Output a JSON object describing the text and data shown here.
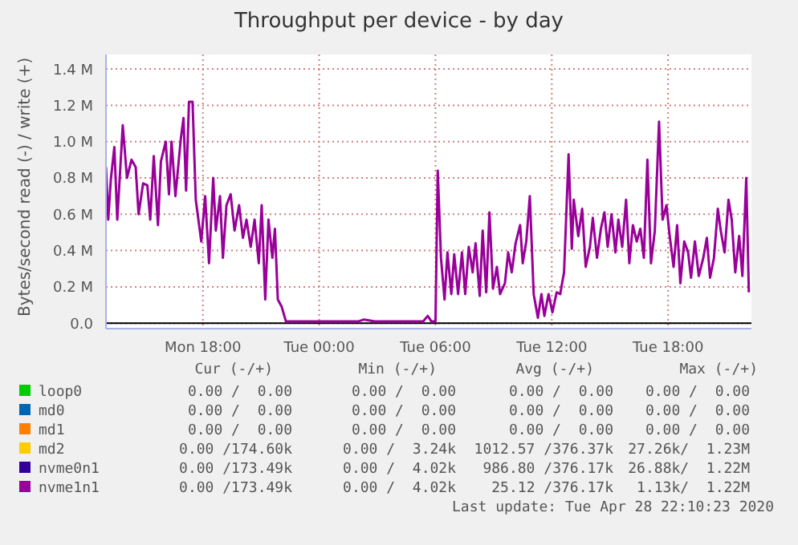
{
  "chart_data": {
    "type": "line",
    "title": "Throughput per device - by day",
    "ylabel": "Bytes/second read (-) / write (+)",
    "x": [
      "2020-04-27T13:00",
      "2020-04-27T13:07",
      "2020-04-27T13:15",
      "2020-04-27T13:26",
      "2020-04-27T13:35",
      "2020-04-27T13:52",
      "2020-04-27T14:05",
      "2020-04-27T14:19",
      "2020-04-27T14:32",
      "2020-04-27T14:41",
      "2020-04-27T14:55",
      "2020-04-27T15:08",
      "2020-04-27T15:17",
      "2020-04-27T15:28",
      "2020-04-27T15:41",
      "2020-04-27T15:50",
      "2020-04-27T16:05",
      "2020-04-27T16:15",
      "2020-04-27T16:23",
      "2020-04-27T16:35",
      "2020-04-27T16:52",
      "2020-04-27T17:00",
      "2020-04-27T17:08",
      "2020-04-27T17:17",
      "2020-04-27T17:28",
      "2020-04-27T17:38",
      "2020-04-27T17:55",
      "2020-04-27T18:07",
      "2020-04-27T18:19",
      "2020-04-27T18:32",
      "2020-04-27T18:40",
      "2020-04-27T18:53",
      "2020-04-27T19:02",
      "2020-04-27T19:13",
      "2020-04-27T19:26",
      "2020-04-27T19:38",
      "2020-04-27T19:52",
      "2020-04-27T20:04",
      "2020-04-27T20:15",
      "2020-04-27T20:28",
      "2020-04-27T20:40",
      "2020-04-27T20:53",
      "2020-04-27T21:02",
      "2020-04-27T21:13",
      "2020-04-27T21:23",
      "2020-04-27T21:35",
      "2020-04-27T21:43",
      "2020-04-27T21:52",
      "2020-04-27T22:04",
      "2020-04-27T22:17",
      "2020-04-28T00:05",
      "2020-04-28T02:02",
      "2020-04-28T02:19",
      "2020-04-28T02:52",
      "2020-04-28T04:15",
      "2020-04-28T05:22",
      "2020-04-28T05:36",
      "2020-04-28T05:47",
      "2020-04-28T06:00",
      "2020-04-28T06:07",
      "2020-04-28T06:17",
      "2020-04-28T06:28",
      "2020-04-28T06:37",
      "2020-04-28T06:49",
      "2020-04-28T06:58",
      "2020-04-28T07:10",
      "2020-04-28T07:22",
      "2020-04-28T07:32",
      "2020-04-28T07:43",
      "2020-04-28T07:55",
      "2020-04-28T08:04",
      "2020-04-28T08:17",
      "2020-04-28T08:26",
      "2020-04-28T08:37",
      "2020-04-28T08:47",
      "2020-04-28T08:58",
      "2020-04-28T09:10",
      "2020-04-28T09:20",
      "2020-04-28T09:35",
      "2020-04-28T09:45",
      "2020-04-28T09:56",
      "2020-04-28T10:08",
      "2020-04-28T10:22",
      "2020-04-28T10:30",
      "2020-04-28T10:41",
      "2020-04-28T10:52",
      "2020-04-28T11:04",
      "2020-04-28T11:17",
      "2020-04-28T11:28",
      "2020-04-28T11:37",
      "2020-04-28T11:50",
      "2020-04-28T12:02",
      "2020-04-28T12:15",
      "2020-04-28T12:26",
      "2020-04-28T12:38",
      "2020-04-28T12:52",
      "2020-04-28T13:02",
      "2020-04-28T13:08",
      "2020-04-28T13:22",
      "2020-04-28T13:34",
      "2020-04-28T13:45",
      "2020-04-28T13:58",
      "2020-04-28T14:07",
      "2020-04-28T14:20",
      "2020-04-28T14:32",
      "2020-04-28T14:43",
      "2020-04-28T14:53",
      "2020-04-28T15:05",
      "2020-04-28T15:17",
      "2020-04-28T15:26",
      "2020-04-28T15:38",
      "2020-04-28T15:50",
      "2020-04-28T16:00",
      "2020-04-28T16:11",
      "2020-04-28T16:23",
      "2020-04-28T16:34",
      "2020-04-28T16:45",
      "2020-04-28T16:56",
      "2020-04-28T17:07",
      "2020-04-28T17:19",
      "2020-04-28T17:32",
      "2020-04-28T17:43",
      "2020-04-28T17:55",
      "2020-04-28T18:05",
      "2020-04-28T18:17",
      "2020-04-28T18:28",
      "2020-04-28T18:38",
      "2020-04-28T18:50",
      "2020-04-28T19:02",
      "2020-04-28T19:11",
      "2020-04-28T19:23",
      "2020-04-28T19:35",
      "2020-04-28T19:49",
      "2020-04-28T20:00",
      "2020-04-28T20:10",
      "2020-04-28T20:22",
      "2020-04-28T20:34",
      "2020-04-28T20:43",
      "2020-04-28T20:55",
      "2020-04-28T21:07",
      "2020-04-28T21:17",
      "2020-04-28T21:28",
      "2020-04-28T21:40",
      "2020-04-28T21:50",
      "2020-04-28T22:02",
      "2020-04-28T22:10"
    ],
    "series": [
      {
        "name": "loop0",
        "color": "#00cc00",
        "values": [
          null,
          null,
          null,
          null,
          null,
          null,
          null,
          null,
          null,
          null,
          null,
          null,
          null,
          null,
          null,
          null,
          null,
          null,
          null,
          null,
          null,
          null,
          null,
          null,
          null,
          null,
          null,
          null,
          null,
          null,
          null,
          null,
          null,
          null,
          null,
          null,
          null,
          null,
          null,
          null,
          null,
          null,
          null,
          null,
          null,
          null,
          null,
          null,
          null,
          null,
          null,
          null,
          null,
          null,
          null,
          null,
          null,
          null,
          null,
          null,
          null,
          null,
          null,
          null,
          null,
          null,
          null,
          null,
          null,
          null,
          null,
          null,
          null,
          null,
          null,
          null,
          null,
          null,
          null,
          null,
          null,
          null,
          null,
          null,
          null,
          null,
          null,
          null,
          null,
          null,
          null,
          null,
          null,
          null,
          null,
          null,
          null,
          null,
          null,
          null,
          null,
          null,
          null,
          null,
          null,
          null,
          null,
          null,
          null,
          null,
          null,
          null,
          null,
          null,
          null,
          null,
          null,
          null,
          null,
          null,
          null,
          null,
          null,
          null,
          null,
          null,
          null,
          null,
          null,
          null,
          null,
          null,
          null,
          null,
          null,
          null,
          null,
          null,
          null,
          null,
          null,
          null,
          null,
          null,
          null,
          null
        ]
      },
      {
        "name": "md0",
        "color": "#0066b3",
        "values": [
          null,
          null,
          null,
          null,
          null,
          null,
          null,
          null,
          null,
          null,
          null,
          null,
          null,
          null,
          null,
          null,
          null,
          null,
          null,
          null,
          null,
          null,
          null,
          null,
          null,
          null,
          null,
          null,
          null,
          null,
          null,
          null,
          null,
          null,
          null,
          null,
          null,
          null,
          null,
          null,
          null,
          null,
          null,
          null,
          null,
          null,
          null,
          null,
          null,
          null,
          null,
          null,
          null,
          null,
          null,
          null,
          null,
          null,
          null,
          null,
          null,
          null,
          null,
          null,
          null,
          null,
          null,
          null,
          null,
          null,
          null,
          null,
          null,
          null,
          null,
          null,
          null,
          null,
          null,
          null,
          null,
          null,
          null,
          null,
          null,
          null,
          null,
          null,
          null,
          null,
          null,
          null,
          null,
          null,
          null,
          null,
          null,
          null,
          null,
          null,
          null,
          null,
          null,
          null,
          null,
          null,
          null,
          null,
          null,
          null,
          null,
          null,
          null,
          null,
          null,
          null,
          null,
          null,
          null,
          null,
          null,
          null,
          null,
          null,
          null,
          null,
          null,
          null,
          null,
          null,
          null,
          null,
          null,
          null,
          null,
          null,
          null,
          null,
          null,
          null,
          null,
          null,
          null,
          null,
          null,
          null
        ]
      },
      {
        "name": "md1",
        "color": "#ff8000",
        "values": [
          null,
          null,
          null,
          null,
          null,
          null,
          null,
          null,
          null,
          null,
          null,
          null,
          null,
          null,
          null,
          null,
          null,
          null,
          null,
          null,
          null,
          null,
          null,
          null,
          null,
          null,
          null,
          null,
          null,
          null,
          null,
          null,
          null,
          null,
          null,
          null,
          null,
          null,
          null,
          null,
          null,
          null,
          null,
          null,
          null,
          null,
          null,
          null,
          null,
          null,
          null,
          null,
          null,
          null,
          null,
          null,
          null,
          null,
          null,
          null,
          null,
          null,
          null,
          null,
          null,
          null,
          null,
          null,
          null,
          null,
          null,
          null,
          null,
          null,
          null,
          null,
          null,
          null,
          null,
          null,
          null,
          null,
          null,
          null,
          null,
          null,
          null,
          null,
          null,
          null,
          null,
          null,
          null,
          null,
          null,
          null,
          null,
          null,
          null,
          null,
          null,
          null,
          null,
          null,
          null,
          null,
          null,
          null,
          null,
          null,
          null,
          null,
          null,
          null,
          null,
          null,
          null,
          null,
          null,
          null,
          null,
          null,
          null,
          null,
          null,
          null,
          null,
          null,
          null,
          null,
          null,
          null,
          null,
          null,
          null,
          null,
          null,
          null,
          null,
          null,
          null,
          null,
          null,
          null,
          null,
          null
        ]
      },
      {
        "name": "md2",
        "color": "#ffcc00",
        "values": [
          null,
          null,
          null,
          null,
          null,
          null,
          null,
          null,
          null,
          null,
          null,
          null,
          null,
          null,
          null,
          null,
          null,
          null,
          null,
          null,
          null,
          null,
          null,
          null,
          null,
          null,
          null,
          null,
          null,
          null,
          null,
          null,
          null,
          null,
          null,
          null,
          null,
          null,
          null,
          null,
          null,
          null,
          null,
          null,
          null,
          null,
          null,
          null,
          null,
          null,
          null,
          null,
          null,
          null,
          null,
          null,
          null,
          null,
          null,
          null,
          null,
          null,
          null,
          null,
          null,
          null,
          null,
          null,
          null,
          null,
          null,
          null,
          null,
          null,
          null,
          null,
          null,
          null,
          null,
          null,
          null,
          null,
          null,
          null,
          null,
          null,
          null,
          null,
          null,
          null,
          null,
          null,
          null,
          null,
          null,
          null,
          null,
          null,
          null,
          null,
          null,
          null,
          null,
          null,
          null,
          null,
          null,
          null,
          null,
          null,
          null,
          null,
          null,
          null,
          null,
          null,
          null,
          null,
          null,
          null,
          null,
          null,
          null,
          null,
          null,
          null,
          null,
          null,
          null,
          null,
          null,
          null,
          null,
          null,
          null,
          null,
          null,
          null,
          null,
          null,
          null,
          null,
          null,
          null,
          null,
          null
        ]
      },
      {
        "name": "nvme0n1",
        "color": "#330099",
        "values": [
          null,
          null,
          null,
          null,
          null,
          null,
          null,
          null,
          null,
          null,
          null,
          null,
          null,
          null,
          null,
          null,
          null,
          null,
          null,
          null,
          null,
          null,
          null,
          null,
          null,
          null,
          null,
          null,
          null,
          null,
          null,
          null,
          null,
          null,
          null,
          null,
          null,
          null,
          null,
          null,
          null,
          null,
          null,
          null,
          null,
          null,
          null,
          null,
          null,
          null,
          null,
          null,
          null,
          null,
          null,
          null,
          null,
          null,
          null,
          null,
          null,
          null,
          null,
          null,
          null,
          null,
          null,
          null,
          null,
          null,
          null,
          null,
          null,
          null,
          null,
          null,
          null,
          null,
          null,
          null,
          null,
          null,
          null,
          null,
          null,
          null,
          null,
          null,
          null,
          null,
          null,
          null,
          null,
          null,
          null,
          null,
          null,
          null,
          null,
          null,
          null,
          null,
          null,
          null,
          null,
          null,
          null,
          null,
          null,
          null,
          null,
          null,
          null,
          null,
          null,
          null,
          null,
          null,
          null,
          null,
          null,
          null,
          null,
          null,
          null,
          null,
          null,
          null,
          null,
          null,
          null,
          null,
          null,
          null,
          null,
          null,
          null,
          null,
          null,
          null,
          null,
          null,
          null,
          null,
          null,
          null
        ]
      },
      {
        "name": "nvme1n1",
        "color": "#990099",
        "values": [
          0.86,
          0.57,
          0.79,
          0.97,
          0.57,
          1.09,
          0.8,
          0.9,
          0.86,
          0.6,
          0.77,
          0.76,
          0.57,
          0.92,
          0.54,
          0.89,
          1.0,
          0.71,
          1.0,
          0.7,
          1.02,
          1.13,
          0.73,
          1.22,
          1.22,
          0.68,
          0.45,
          0.7,
          0.33,
          0.8,
          0.51,
          0.7,
          0.36,
          0.65,
          0.71,
          0.51,
          0.65,
          0.47,
          0.57,
          0.42,
          0.57,
          0.33,
          0.65,
          0.13,
          0.57,
          0.36,
          0.52,
          0.13,
          0.09,
          0.01,
          0.01,
          0.01,
          0.02,
          0.01,
          0.01,
          0.01,
          0.04,
          0.01,
          0.01,
          0.84,
          0.36,
          0.13,
          0.39,
          0.16,
          0.38,
          0.16,
          0.39,
          0.16,
          0.42,
          0.28,
          0.44,
          0.15,
          0.51,
          0.17,
          0.61,
          0.19,
          0.31,
          0.16,
          0.22,
          0.39,
          0.28,
          0.44,
          0.54,
          0.33,
          0.45,
          0.7,
          0.16,
          0.03,
          0.16,
          0.04,
          0.16,
          0.06,
          0.17,
          0.16,
          0.28,
          0.93,
          0.41,
          0.68,
          0.48,
          0.63,
          0.31,
          0.42,
          0.58,
          0.36,
          0.52,
          0.61,
          0.42,
          0.6,
          0.39,
          0.57,
          0.42,
          0.68,
          0.33,
          0.54,
          0.45,
          0.52,
          0.36,
          0.9,
          0.33,
          0.51,
          1.11,
          0.57,
          0.65,
          0.48,
          0.31,
          0.54,
          0.22,
          0.45,
          0.39,
          0.25,
          0.45,
          0.26,
          0.36,
          0.47,
          0.25,
          0.36,
          0.63,
          0.51,
          0.39,
          0.68,
          0.57,
          0.28,
          0.48,
          0.26,
          0.8,
          0.17
        ]
      }
    ],
    "xlim": [
      "2020-04-27T13:00",
      "2020-04-28T22:18"
    ],
    "xticks": [
      {
        "value": "2020-04-27T18:00",
        "label": "Mon 18:00"
      },
      {
        "value": "2020-04-28T00:00",
        "label": "Tue 00:00"
      },
      {
        "value": "2020-04-28T06:00",
        "label": "Tue 06:00"
      },
      {
        "value": "2020-04-28T12:00",
        "label": "Tue 12:00"
      },
      {
        "value": "2020-04-28T18:00",
        "label": "Tue 18:00"
      }
    ],
    "ylim": [
      -0.03,
      1.48
    ],
    "yticks": [
      {
        "value": 0,
        "label": "0.0"
      },
      {
        "value": 0.2,
        "label": "0.2 M"
      },
      {
        "value": 0.4,
        "label": "0.4 M"
      },
      {
        "value": 0.6,
        "label": "0.6 M"
      },
      {
        "value": 0.8,
        "label": "0.8 M"
      },
      {
        "value": 1.0,
        "label": "1.0 M"
      },
      {
        "value": 1.2,
        "label": "1.2 M"
      },
      {
        "value": 1.4,
        "label": "1.4 M"
      }
    ],
    "ref_lines": [
      {
        "axis": "y",
        "value": 0,
        "color": "#000000"
      }
    ],
    "grid": true,
    "legend": "bottom",
    "marker": "none",
    "line_style": "solid",
    "annotations": [
      "Cur (-/+)",
      "Min (-/+)",
      "Avg (-/+)",
      "Max (-/+)",
      "0.00 /  0.00",
      "0.00 /  0.00",
      "0.00 /  0.00",
      "0.00 /  0.00",
      "0.00 /  0.00",
      "0.00 /  0.00",
      "0.00 /  0.00",
      "0.00 /  0.00",
      "0.00 /  0.00",
      "0.00 /  0.00",
      "0.00 /  0.00",
      "0.00 /  0.00",
      "0.00 /174.60k",
      "0.00 /  3.24k",
      "1012.57 /376.37k",
      "27.26k/  1.23M",
      "0.00 /173.49k",
      "0.00 /  4.02k",
      "986.80 /376.17k",
      "26.88k/  1.22M",
      "0.00 /173.49k",
      "0.00 /  4.02k",
      "25.12 /376.17k",
      "1.13k/  1.22M",
      "Last update: Tue Apr 28 22:10:23 2020"
    ]
  }
}
